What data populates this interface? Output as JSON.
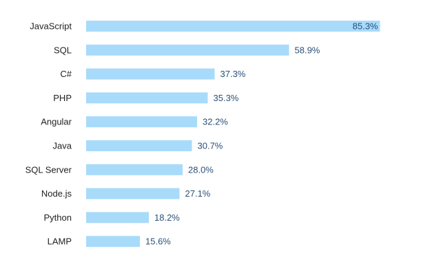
{
  "chart_data": {
    "type": "bar",
    "orientation": "horizontal",
    "categories": [
      "JavaScript",
      "SQL",
      "C#",
      "PHP",
      "Angular",
      "Java",
      "SQL Server",
      "Node.js",
      "Python",
      "LAMP"
    ],
    "values": [
      85.3,
      58.9,
      37.3,
      35.3,
      32.2,
      30.7,
      28.0,
      27.1,
      18.2,
      15.6
    ],
    "value_labels": [
      "85.3%",
      "58.9%",
      "37.3%",
      "35.3%",
      "32.2%",
      "30.7%",
      "28.0%",
      "27.1%",
      "18.2%",
      "15.6%"
    ],
    "xlim": [
      0,
      100
    ],
    "grid": false,
    "legend": "none",
    "bar_color": "#a8dbfa"
  }
}
